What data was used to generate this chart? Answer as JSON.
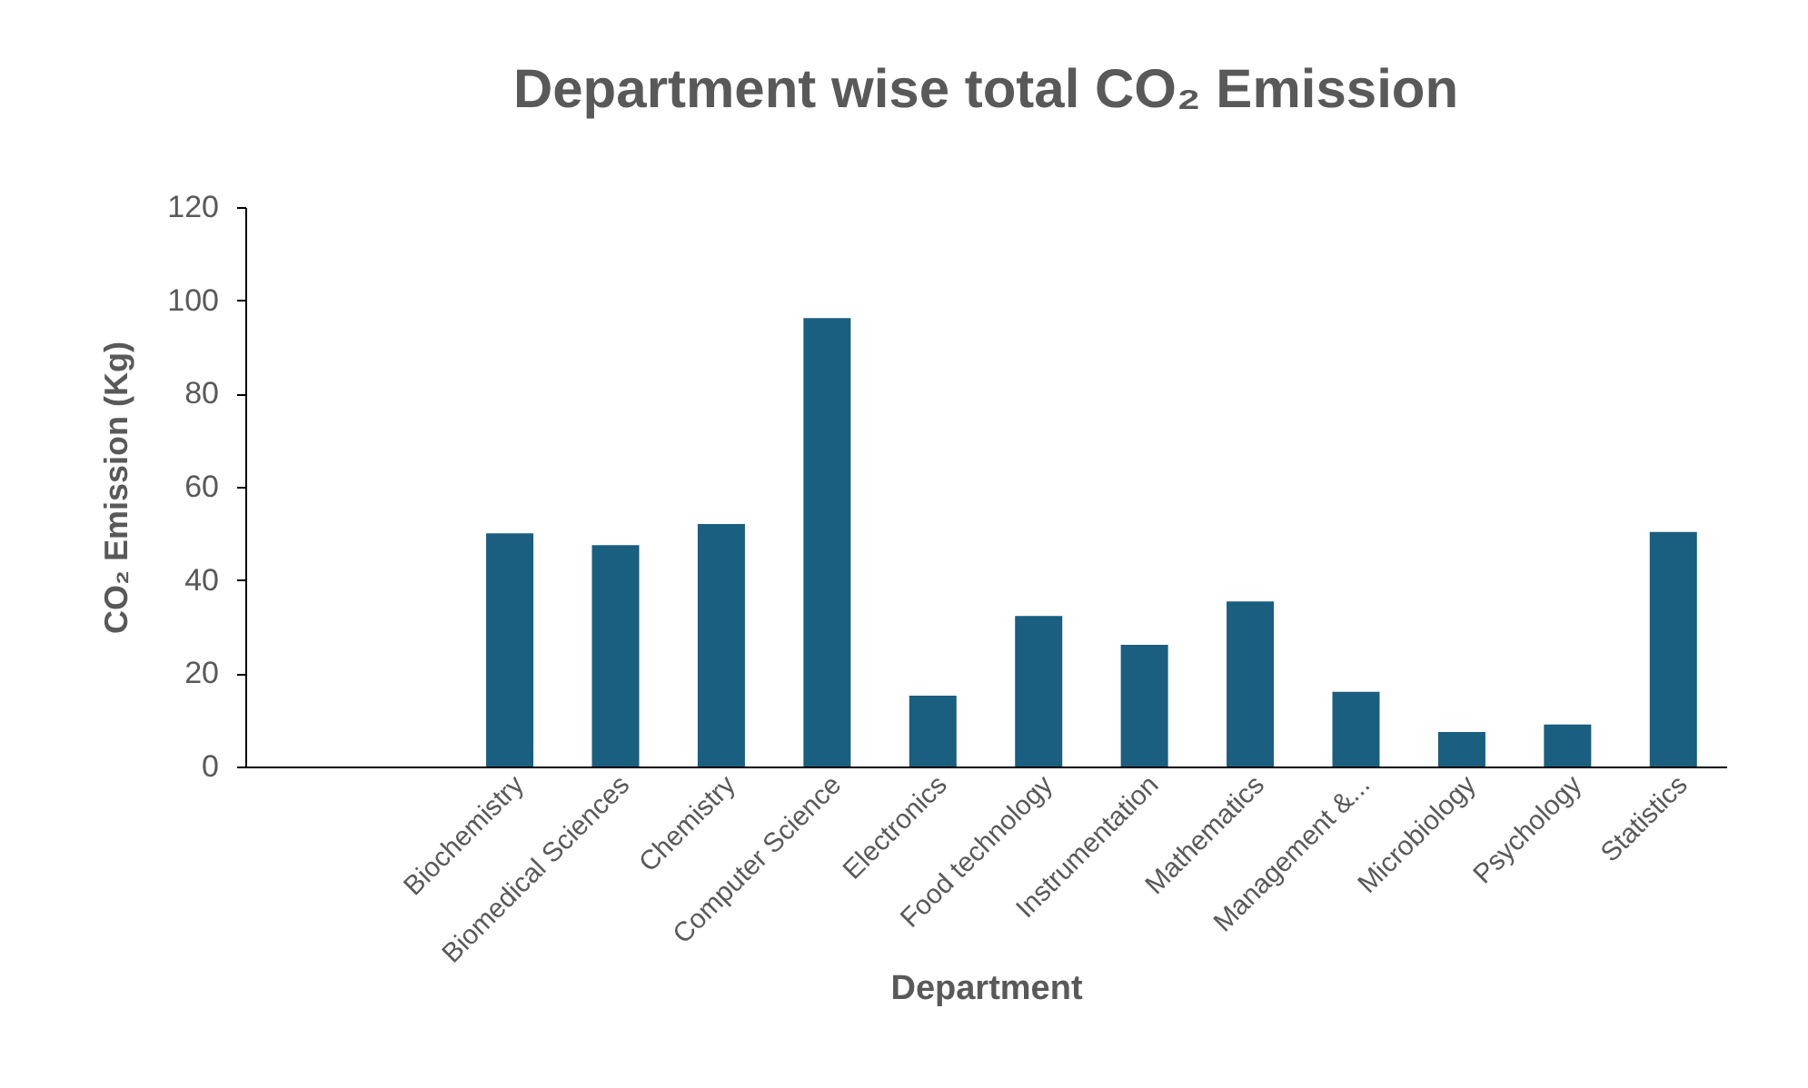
{
  "chart_data": {
    "type": "bar",
    "title": "Department wise total CO₂ Emission",
    "xlabel": "Department",
    "ylabel": "CO₂ Emission (Kg)",
    "categories": [
      null,
      null,
      "Biochemistry",
      "Biomedical Sciences",
      "Chemistry",
      "Computer Science",
      "Electronics",
      "Food technology",
      "Instrumentation",
      "Mathematics",
      "Management &...",
      "Microbiology",
      "Psychology",
      "Statistics"
    ],
    "values": [
      null,
      null,
      50,
      47.5,
      52,
      96.2,
      15.2,
      32.3,
      26.1,
      35.4,
      16,
      7.4,
      9,
      50.3
    ],
    "color": "#1a5e80",
    "ylim": [
      0,
      120
    ],
    "yticks": [
      0,
      20,
      40,
      60,
      80,
      100,
      120
    ],
    "grid": false
  }
}
